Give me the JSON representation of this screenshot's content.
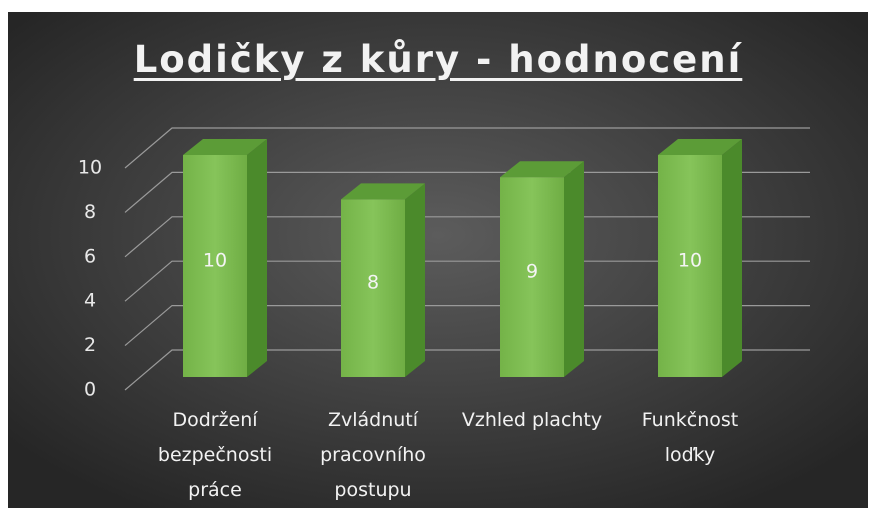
{
  "chart_data": {
    "type": "bar",
    "title": "Lodičky z kůry - hodnocení",
    "categories": [
      "Dodržení bezpečnosti práce",
      "Zvládnutí pracovního postupu",
      "Vzhled plachty",
      "Funkčnost loďky"
    ],
    "values": [
      10,
      8,
      9,
      10
    ],
    "color": "#7cba50",
    "ylim": [
      0,
      10
    ],
    "yticks": [
      0,
      2,
      4,
      6,
      8,
      10
    ],
    "grid": true
  }
}
